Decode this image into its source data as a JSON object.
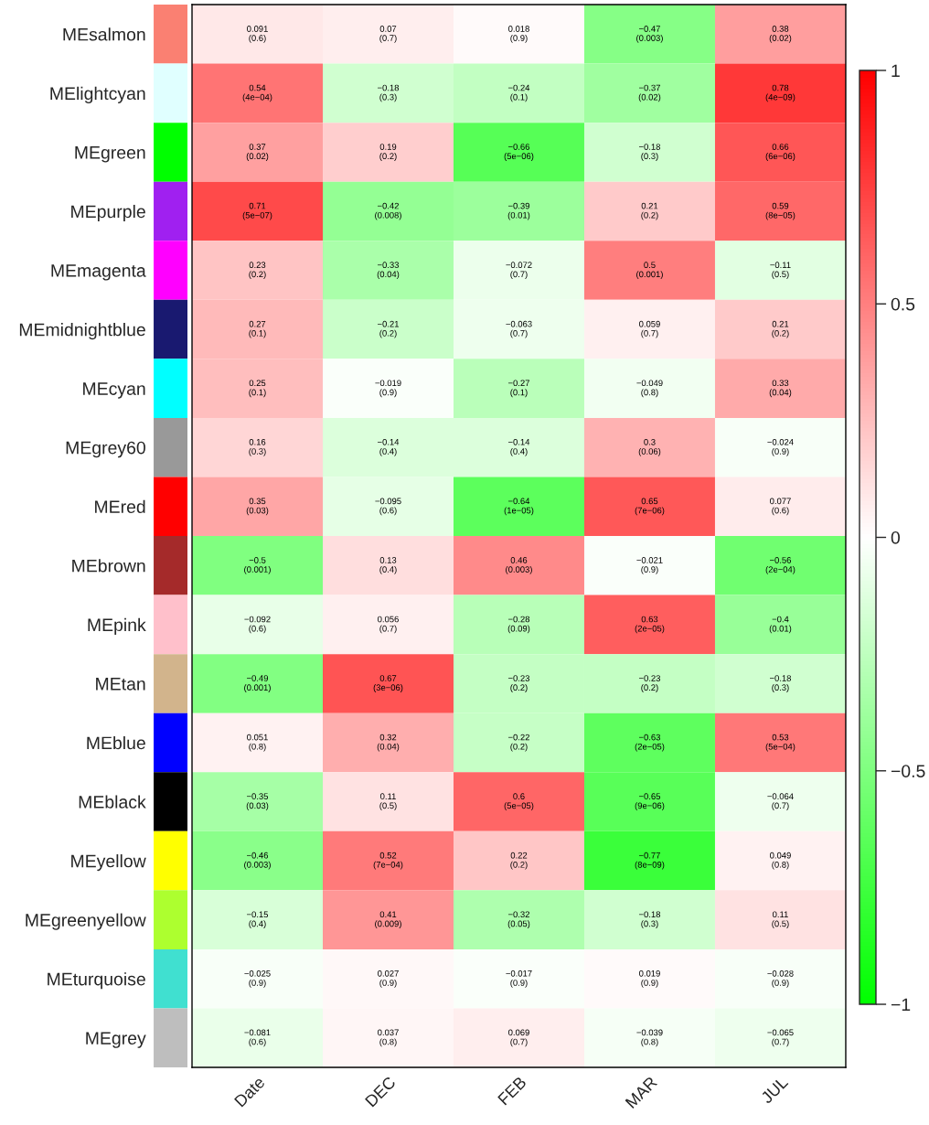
{
  "chart_data": {
    "type": "heatmap",
    "categories": [
      "Date",
      "DEC",
      "FEB",
      "MAR",
      "JUL"
    ],
    "y_categories": [
      "MEsalmon",
      "MElightcyan",
      "MEgreen",
      "MEpurple",
      "MEmagenta",
      "MEmidnightblue",
      "MEcyan",
      "MEgrey60",
      "MEred",
      "MEbrown",
      "MEpink",
      "MEtan",
      "MEblue",
      "MEblack",
      "MEyellow",
      "MEgreenyellow",
      "MEturquoise",
      "MEgrey"
    ],
    "colors": [
      "#fa8072",
      "#e0ffff",
      "#00ff00",
      "#a020f0",
      "#ff00ff",
      "#191970",
      "#00ffff",
      "#999999",
      "#ff0000",
      "#a52a2a",
      "#ffc0cb",
      "#d2b48c",
      "#0000ff",
      "#000000",
      "#ffff00",
      "#adff2f",
      "#40e0d0",
      "#bebebe"
    ],
    "cells": [
      [
        0.091,
        0.07,
        0.018,
        -0.47,
        0.38
      ],
      [
        0.54,
        -0.18,
        -0.24,
        -0.37,
        0.78
      ],
      [
        0.37,
        0.19,
        -0.66,
        -0.18,
        0.66
      ],
      [
        0.71,
        -0.42,
        -0.39,
        0.21,
        0.59
      ],
      [
        0.23,
        -0.33,
        -0.072,
        0.5,
        -0.11
      ],
      [
        0.27,
        -0.21,
        -0.063,
        0.059,
        0.21
      ],
      [
        0.25,
        -0.019,
        -0.27,
        -0.049,
        0.33
      ],
      [
        0.16,
        -0.14,
        -0.14,
        0.3,
        -0.024
      ],
      [
        0.35,
        -0.095,
        -0.64,
        0.65,
        0.077
      ],
      [
        -0.5,
        0.13,
        0.46,
        -0.021,
        -0.56
      ],
      [
        -0.092,
        0.056,
        -0.28,
        0.63,
        -0.4
      ],
      [
        -0.49,
        0.67,
        -0.23,
        -0.23,
        -0.18
      ],
      [
        0.051,
        0.32,
        -0.22,
        -0.63,
        0.53
      ],
      [
        -0.35,
        0.11,
        0.6,
        -0.65,
        -0.064
      ],
      [
        -0.46,
        0.52,
        0.22,
        -0.77,
        0.049
      ],
      [
        -0.15,
        0.41,
        -0.32,
        -0.18,
        0.11
      ],
      [
        -0.025,
        0.027,
        -0.017,
        0.019,
        -0.028
      ],
      [
        -0.081,
        0.037,
        0.069,
        -0.039,
        -0.065
      ]
    ],
    "cell_labels": [
      [
        "0.091\n(0.6)",
        "0.07\n(0.7)",
        "0.018\n(0.9)",
        "−0.47\n(0.003)",
        "0.38\n(0.02)"
      ],
      [
        "0.54\n(4e−04)",
        "−0.18\n(0.3)",
        "−0.24\n(0.1)",
        "−0.37\n(0.02)",
        "0.78\n(4e−09)"
      ],
      [
        "0.37\n(0.02)",
        "0.19\n(0.2)",
        "−0.66\n(5e−06)",
        "−0.18\n(0.3)",
        "0.66\n(6e−06)"
      ],
      [
        "0.71\n(5e−07)",
        "−0.42\n(0.008)",
        "−0.39\n(0.01)",
        "0.21\n(0.2)",
        "0.59\n(8e−05)"
      ],
      [
        "0.23\n(0.2)",
        "−0.33\n(0.04)",
        "−0.072\n(0.7)",
        "0.5\n(0.001)",
        "−0.11\n(0.5)"
      ],
      [
        "0.27\n(0.1)",
        "−0.21\n(0.2)",
        "−0.063\n(0.7)",
        "0.059\n(0.7)",
        "0.21\n(0.2)"
      ],
      [
        "0.25\n(0.1)",
        "−0.019\n(0.9)",
        "−0.27\n(0.1)",
        "−0.049\n(0.8)",
        "0.33\n(0.04)"
      ],
      [
        "0.16\n(0.3)",
        "−0.14\n(0.4)",
        "−0.14\n(0.4)",
        "0.3\n(0.06)",
        "−0.024\n(0.9)"
      ],
      [
        "0.35\n(0.03)",
        "−0.095\n(0.6)",
        "−0.64\n(1e−05)",
        "0.65\n(7e−06)",
        "0.077\n(0.6)"
      ],
      [
        "−0.5\n(0.001)",
        "0.13\n(0.4)",
        "0.46\n(0.003)",
        "−0.021\n(0.9)",
        "−0.56\n(2e−04)"
      ],
      [
        "−0.092\n(0.6)",
        "0.056\n(0.7)",
        "−0.28\n(0.09)",
        "0.63\n(2e−05)",
        "−0.4\n(0.01)"
      ],
      [
        "−0.49\n(0.001)",
        "0.67\n(3e−06)",
        "−0.23\n(0.2)",
        "−0.23\n(0.2)",
        "−0.18\n(0.3)"
      ],
      [
        "0.051\n(0.8)",
        "0.32\n(0.04)",
        "−0.22\n(0.2)",
        "−0.63\n(2e−05)",
        "0.53\n(5e−04)"
      ],
      [
        "−0.35\n(0.03)",
        "0.11\n(0.5)",
        "0.6\n(5e−05)",
        "−0.65\n(9e−06)",
        "−0.064\n(0.7)"
      ],
      [
        "−0.46\n(0.003)",
        "0.52\n(7e−04)",
        "0.22\n(0.2)",
        "−0.77\n(8e−09)",
        "0.049\n(0.8)"
      ],
      [
        "−0.15\n(0.4)",
        "0.41\n(0.009)",
        "−0.32\n(0.05)",
        "−0.18\n(0.3)",
        "0.11\n(0.5)"
      ],
      [
        "−0.025\n(0.9)",
        "0.027\n(0.9)",
        "−0.017\n(0.9)",
        "0.019\n(0.9)",
        "−0.028\n(0.9)"
      ],
      [
        "−0.081\n(0.6)",
        "0.037\n(0.8)",
        "0.069\n(0.7)",
        "−0.039\n(0.8)",
        "−0.065\n(0.7)"
      ]
    ],
    "clim": [
      -1,
      1
    ],
    "cticks": [
      {
        "value": -1,
        "label": "−1"
      },
      {
        "value": -0.5,
        "label": "−0.5"
      },
      0,
      0.5,
      1
    ]
  }
}
